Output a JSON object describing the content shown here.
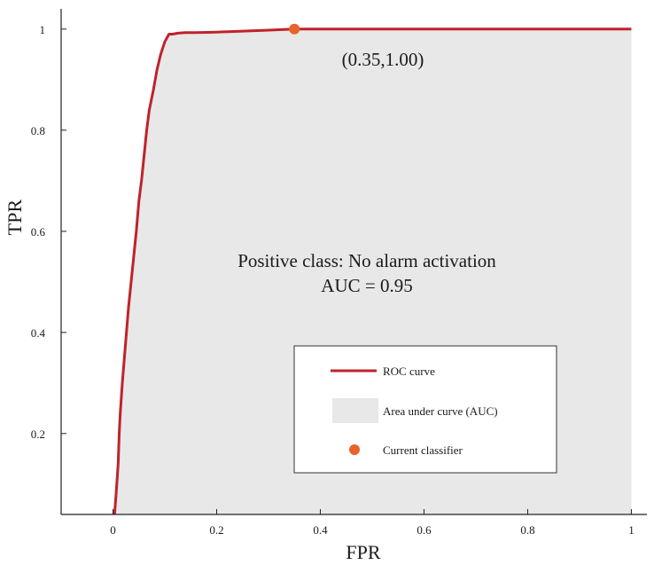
{
  "chart_data": {
    "type": "line",
    "xlabel": "FPR",
    "ylabel": "TPR",
    "xlim": [
      -0.1,
      1.03
    ],
    "ylim": [
      0.04,
      1.04
    ],
    "xticks": [
      0,
      0.2,
      0.4,
      0.6,
      0.8,
      1
    ],
    "xtick_labels": [
      "0",
      "0.2",
      "0.4",
      "0.6",
      "0.8",
      "1"
    ],
    "yticks": [
      0.2,
      0.4,
      0.6,
      0.8,
      1
    ],
    "ytick_labels": [
      "0.2",
      "0.4",
      "0.6",
      "0.8",
      "1"
    ],
    "grid": false,
    "legend_position": "bottom-right",
    "series": [
      {
        "name": "ROC curve",
        "type": "line",
        "color": "#c0222b",
        "x": [
          0.003,
          0.006,
          0.01,
          0.012,
          0.014,
          0.018,
          0.022,
          0.026,
          0.03,
          0.035,
          0.04,
          0.045,
          0.05,
          0.055,
          0.06,
          0.065,
          0.07,
          0.078,
          0.085,
          0.092,
          0.1,
          0.108,
          0.115,
          0.125,
          0.14,
          0.16,
          0.2,
          0.25,
          0.3,
          0.35,
          0.4,
          0.6,
          0.8,
          1.0
        ],
        "y": [
          0.04,
          0.08,
          0.14,
          0.2,
          0.24,
          0.3,
          0.35,
          0.4,
          0.45,
          0.5,
          0.55,
          0.6,
          0.66,
          0.7,
          0.75,
          0.8,
          0.84,
          0.88,
          0.92,
          0.95,
          0.975,
          0.99,
          0.99,
          0.992,
          0.993,
          0.993,
          0.994,
          0.996,
          0.998,
          1.0,
          1.0,
          1.0,
          1.0,
          1.0
        ]
      },
      {
        "name": "Area under curve (AUC)",
        "type": "area",
        "color": "#e8e8e8"
      },
      {
        "name": "Current classifier",
        "type": "scatter",
        "color": "#e8622a",
        "x": [
          0.35
        ],
        "y": [
          1.0
        ]
      }
    ],
    "annotations": {
      "point_label": "(0.35,1.00)",
      "class_text": "Positive class: No alarm activation",
      "auc_text": "AUC = 0.95"
    }
  }
}
